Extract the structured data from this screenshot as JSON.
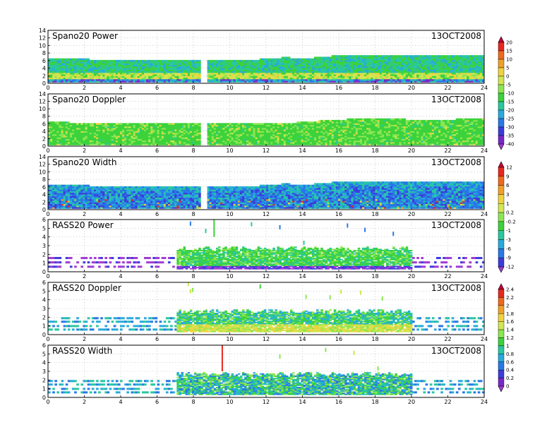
{
  "chart_data": [
    {
      "type": "heatmap",
      "title": "Spano20 Power",
      "date": "13OCT2008",
      "xlim": [
        0,
        24
      ],
      "ylim": [
        0,
        14
      ],
      "xticks": [
        0,
        2,
        4,
        6,
        8,
        10,
        12,
        14,
        16,
        18,
        20,
        22,
        24
      ],
      "yticks": [
        0,
        2,
        4,
        6,
        8,
        10,
        12,
        14
      ],
      "gap_x": [
        8.5,
        8.7
      ],
      "colorbar": "power",
      "top_height": [
        [
          0,
          6.6
        ],
        [
          2,
          6.2
        ],
        [
          4,
          6.0
        ],
        [
          6,
          6.0
        ],
        [
          8,
          6.1
        ],
        [
          10,
          6.1
        ],
        [
          12,
          6.2
        ],
        [
          13,
          6.7
        ],
        [
          14,
          6.3
        ],
        [
          15,
          6.8
        ],
        [
          16,
          7.2
        ],
        [
          18,
          7.3
        ],
        [
          20,
          7.2
        ],
        [
          22,
          7.1
        ],
        [
          24,
          7.2
        ]
      ]
    },
    {
      "type": "heatmap",
      "title": "Spano20 Doppler",
      "date": "13OCT2008",
      "xlim": [
        0,
        24
      ],
      "ylim": [
        0,
        14
      ],
      "xticks": [
        0,
        2,
        4,
        6,
        8,
        10,
        12,
        14,
        16,
        18,
        20,
        22,
        24
      ],
      "yticks": [
        0,
        2,
        4,
        6,
        8,
        10,
        12,
        14
      ],
      "gap_x": [
        8.5,
        8.7
      ],
      "colorbar": "power",
      "top_height": [
        [
          0,
          6.4
        ],
        [
          2,
          6.0
        ],
        [
          4,
          5.9
        ],
        [
          6,
          5.9
        ],
        [
          8,
          5.9
        ],
        [
          10,
          6.0
        ],
        [
          12,
          6.1
        ],
        [
          14,
          6.2
        ],
        [
          15,
          6.7
        ],
        [
          16,
          7.0
        ],
        [
          18,
          7.1
        ],
        [
          20,
          7.0
        ],
        [
          22,
          7.0
        ],
        [
          24,
          7.1
        ]
      ]
    },
    {
      "type": "heatmap",
      "title": "Spano20 Width",
      "date": "13OCT2008",
      "xlim": [
        0,
        24
      ],
      "ylim": [
        0,
        14
      ],
      "xticks": [
        0,
        2,
        4,
        6,
        8,
        10,
        12,
        14,
        16,
        18,
        20,
        22,
        24
      ],
      "yticks": [
        0,
        2,
        4,
        6,
        8,
        10,
        12,
        14
      ],
      "gap_x": [
        8.5,
        8.7
      ],
      "colorbar": "width",
      "top_height": [
        [
          0,
          6.6
        ],
        [
          2,
          6.2
        ],
        [
          4,
          6.0
        ],
        [
          6,
          6.0
        ],
        [
          8,
          6.1
        ],
        [
          10,
          6.1
        ],
        [
          12,
          6.2
        ],
        [
          13,
          6.7
        ],
        [
          14,
          6.3
        ],
        [
          15,
          6.8
        ],
        [
          16,
          7.2
        ],
        [
          18,
          7.3
        ],
        [
          20,
          7.2
        ],
        [
          22,
          7.1
        ],
        [
          24,
          7.2
        ]
      ]
    },
    {
      "type": "heatmap",
      "title": "RASS20 Power",
      "date": "13OCT2008",
      "xlim": [
        0,
        24
      ],
      "ylim": [
        0,
        6
      ],
      "xticks": [
        0,
        2,
        4,
        6,
        8,
        10,
        12,
        14,
        16,
        18,
        20,
        22,
        24
      ],
      "yticks": [
        0,
        1,
        2,
        3,
        4,
        5,
        6
      ],
      "active_window": [
        7.0,
        20.0
      ],
      "colorbar": "width"
    },
    {
      "type": "heatmap",
      "title": "RASS20 Doppler",
      "date": "13OCT2008",
      "xlim": [
        0,
        24
      ],
      "ylim": [
        0,
        6
      ],
      "xticks": [
        0,
        2,
        4,
        6,
        8,
        10,
        12,
        14,
        16,
        18,
        20,
        22,
        24
      ],
      "yticks": [
        0,
        1,
        2,
        3,
        4,
        5,
        6
      ],
      "active_window": [
        7.0,
        20.0
      ],
      "colorbar": "doppler"
    },
    {
      "type": "heatmap",
      "title": "RASS20 Width",
      "date": "13OCT2008",
      "xlim": [
        0,
        24
      ],
      "ylim": [
        0,
        6
      ],
      "xticks": [
        0,
        2,
        4,
        6,
        8,
        10,
        12,
        14,
        16,
        18,
        20,
        22,
        24
      ],
      "yticks": [
        0,
        1,
        2,
        3,
        4,
        5,
        6
      ],
      "active_window": [
        7.0,
        20.0
      ],
      "colorbar": "doppler"
    }
  ],
  "colorbars": {
    "power": {
      "labels": [
        "20",
        "15",
        "10",
        "5",
        "0",
        "-5",
        "-10",
        "-15",
        "-20",
        "-25",
        "-30",
        "-35",
        "-40"
      ],
      "colors": [
        "#c8003c",
        "#e8281e",
        "#f06a1e",
        "#f0a028",
        "#f0d23c",
        "#d2e650",
        "#8ce650",
        "#3cd23c",
        "#28c8a0",
        "#28aadc",
        "#2878e6",
        "#3c3cdc",
        "#7828c8",
        "#a03cd2"
      ]
    },
    "width": {
      "labels": [
        "12",
        "9",
        "6",
        "3",
        "1",
        "0.2",
        "-0.2",
        "-1",
        "-3",
        "-6",
        "-9",
        "-12"
      ],
      "colors": [
        "#c8003c",
        "#e8281e",
        "#f06a1e",
        "#f0a028",
        "#f0d23c",
        "#d2e650",
        "#8ce650",
        "#3cd23c",
        "#28c8a0",
        "#28aadc",
        "#2878e6",
        "#3c3cdc",
        "#a03cd2"
      ]
    },
    "doppler": {
      "labels": [
        "2.4",
        "2.2",
        "2",
        "1.8",
        "1.6",
        "1.4",
        "1.2",
        "1",
        "0.8",
        "0.6",
        "0.4",
        "0.2",
        "0"
      ],
      "colors": [
        "#c8003c",
        "#e8281e",
        "#f06a1e",
        "#f0a028",
        "#f0d23c",
        "#d2e650",
        "#8ce650",
        "#3cd23c",
        "#28c8a0",
        "#28aadc",
        "#2878e6",
        "#3c3cdc",
        "#7828c8",
        "#a03cd2"
      ]
    }
  }
}
